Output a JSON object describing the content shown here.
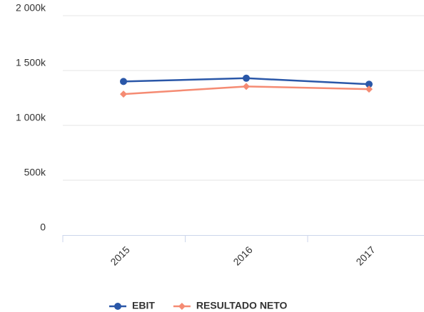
{
  "chart_data": {
    "type": "line",
    "categories": [
      "2015",
      "2016",
      "2017"
    ],
    "series": [
      {
        "name": "EBIT",
        "color": "#2a57a8",
        "marker": "circle",
        "values": [
          1400,
          1430,
          1375
        ]
      },
      {
        "name": "RESULTADO NETO",
        "color": "#f58b73",
        "marker": "diamond",
        "values": [
          1285,
          1355,
          1330
        ]
      }
    ],
    "ylim": [
      0,
      2000
    ],
    "yticks": [
      0,
      {
        "value": 500,
        "label": "500k"
      },
      {
        "value": 1000,
        "label": "1 000k"
      },
      {
        "value": 1500,
        "label": "1 500k"
      },
      {
        "value": 2000,
        "label": "2 000k"
      }
    ],
    "grid": true,
    "legend": "bottom"
  }
}
